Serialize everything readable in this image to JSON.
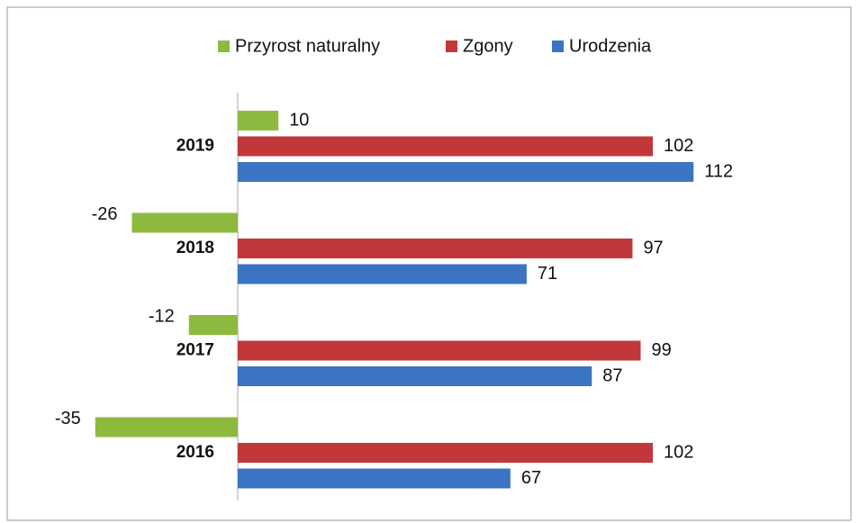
{
  "chart_data": {
    "type": "hbar",
    "categories": [
      "2019",
      "2018",
      "2017",
      "2016"
    ],
    "series": [
      {
        "name": "Przyrost naturalny",
        "color": "#8dba3e",
        "values": [
          10,
          -26,
          -12,
          -35
        ]
      },
      {
        "name": "Zgony",
        "color": "#c1373a",
        "values": [
          102,
          97,
          99,
          102
        ]
      },
      {
        "name": "Urodzenia",
        "color": "#3b74c2",
        "values": [
          112,
          71,
          87,
          67
        ]
      }
    ],
    "legend": "top"
  }
}
